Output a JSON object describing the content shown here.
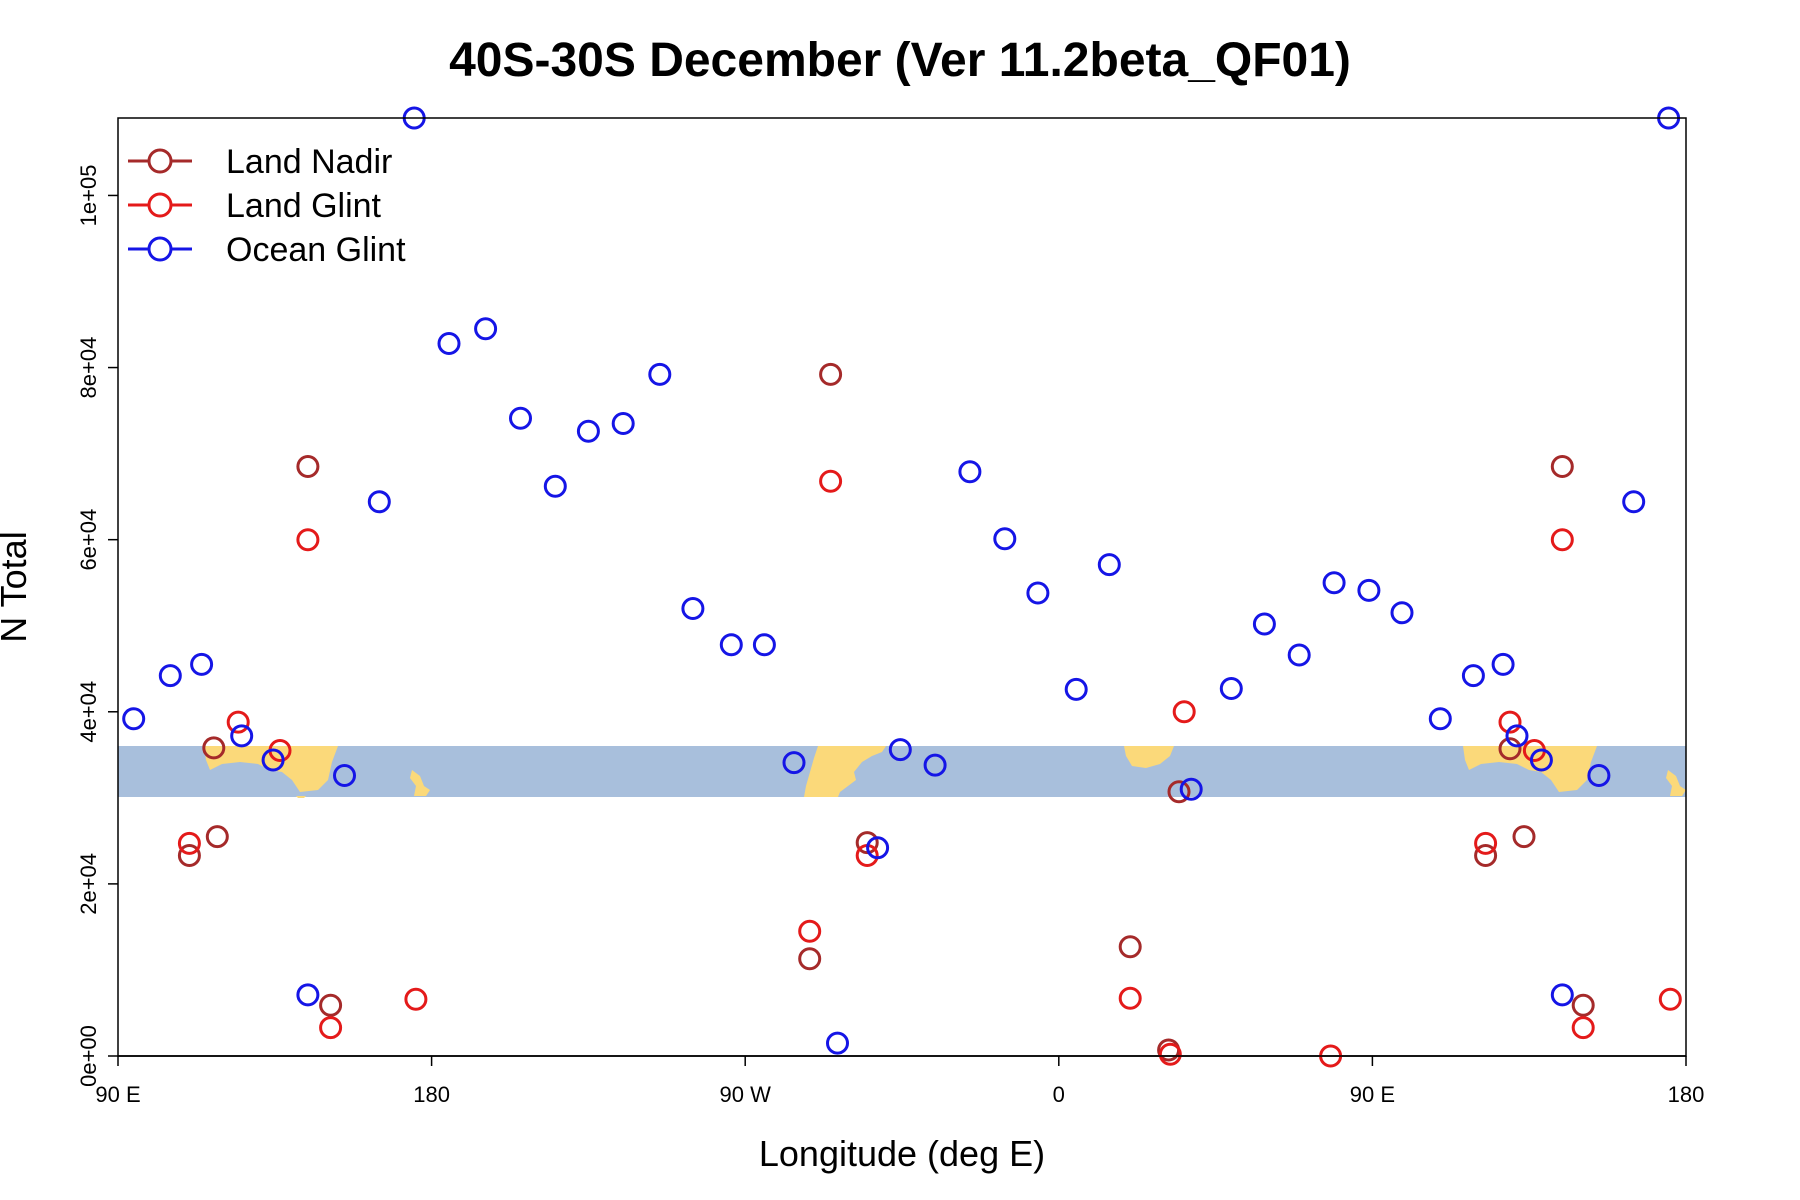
{
  "chart_data": {
    "type": "scatter",
    "title": "40S-30S December (Ver 11.2beta_QF01)",
    "xlabel": "Longitude (deg E)",
    "ylabel": "N Total",
    "xlim": [
      90,
      540
    ],
    "ylim": [
      0,
      109000
    ],
    "grid": false,
    "legend_position": "top-left",
    "x_ticks": [
      {
        "value": 90,
        "label": "90 E"
      },
      {
        "value": 180,
        "label": "180"
      },
      {
        "value": 270,
        "label": "90 W"
      },
      {
        "value": 360,
        "label": "0"
      },
      {
        "value": 450,
        "label": "90 E"
      },
      {
        "value": 540,
        "label": "180"
      }
    ],
    "y_ticks": [
      {
        "value": 0,
        "label": "0e+00"
      },
      {
        "value": 20000,
        "label": "2e+04"
      },
      {
        "value": 40000,
        "label": "4e+04"
      },
      {
        "value": 60000,
        "label": "6e+04"
      },
      {
        "value": 80000,
        "label": "8e+04"
      },
      {
        "value": 100000,
        "label": "1e+05"
      }
    ],
    "map_band": {
      "ymin": 30500,
      "ymax": 36300,
      "latitude_range": "40S-30S",
      "ocean_color": "#a8bfdc",
      "land_color": "#fbd97a"
    },
    "series": [
      {
        "name": "Land Nadir",
        "color": "#a52a2a",
        "points": [
          [
            117.5,
            35800
          ],
          [
            118.5,
            25500
          ],
          [
            144.5,
            68500
          ],
          [
            151,
            5900
          ],
          [
            110.5,
            23300
          ],
          [
            294.5,
            79200
          ],
          [
            288.5,
            11300
          ],
          [
            305,
            24800
          ],
          [
            380.5,
            12700
          ],
          [
            394.5,
            30700
          ],
          [
            391.5,
            700
          ],
          [
            482.5,
            23300
          ],
          [
            489.5,
            35700
          ],
          [
            493.5,
            25500
          ],
          [
            504.5,
            68500
          ],
          [
            510.5,
            5900
          ]
        ]
      },
      {
        "name": "Land Glint",
        "color": "#e41a1a",
        "points": [
          [
            124.5,
            38800
          ],
          [
            136.5,
            35500
          ],
          [
            144.5,
            60000
          ],
          [
            151,
            3300
          ],
          [
            110.5,
            24700
          ],
          [
            175.5,
            6600
          ],
          [
            294.5,
            66800
          ],
          [
            288.5,
            14500
          ],
          [
            305,
            23300
          ],
          [
            380.5,
            6700
          ],
          [
            396,
            40000
          ],
          [
            392,
            200
          ],
          [
            438,
            0
          ],
          [
            482.5,
            24700
          ],
          [
            489.5,
            38800
          ],
          [
            496.5,
            35500
          ],
          [
            504.5,
            60000
          ],
          [
            510.5,
            3300
          ],
          [
            535.5,
            6600
          ]
        ]
      },
      {
        "name": "Ocean Glint",
        "color": "#1515e6",
        "points": [
          [
            94.5,
            39200
          ],
          [
            105,
            44200
          ],
          [
            114,
            45500
          ],
          [
            125.5,
            37200
          ],
          [
            134.5,
            34400
          ],
          [
            144.5,
            7100
          ],
          [
            155,
            32600
          ],
          [
            165,
            64400
          ],
          [
            175,
            109000
          ],
          [
            185,
            82800
          ],
          [
            195.5,
            84500
          ],
          [
            205.5,
            74100
          ],
          [
            215.5,
            66200
          ],
          [
            225,
            72600
          ],
          [
            235,
            73500
          ],
          [
            245.5,
            79200
          ],
          [
            255,
            52000
          ],
          [
            266,
            47800
          ],
          [
            275.5,
            47800
          ],
          [
            284,
            34100
          ],
          [
            296.5,
            1500
          ],
          [
            308,
            24200
          ],
          [
            314.5,
            35600
          ],
          [
            324.5,
            33800
          ],
          [
            334.5,
            67900
          ],
          [
            344.5,
            60100
          ],
          [
            354,
            53800
          ],
          [
            365,
            42600
          ],
          [
            374.5,
            57100
          ],
          [
            398,
            31000
          ],
          [
            409.5,
            42700
          ],
          [
            419,
            50200
          ],
          [
            429,
            46600
          ],
          [
            439,
            55000
          ],
          [
            449,
            54100
          ],
          [
            458.5,
            51500
          ],
          [
            469.5,
            39200
          ],
          [
            479,
            44200
          ],
          [
            487.5,
            45500
          ],
          [
            491.5,
            37200
          ],
          [
            498.5,
            34400
          ],
          [
            504.5,
            7100
          ],
          [
            515,
            32600
          ],
          [
            525,
            64400
          ],
          [
            535,
            109000
          ]
        ]
      }
    ]
  }
}
